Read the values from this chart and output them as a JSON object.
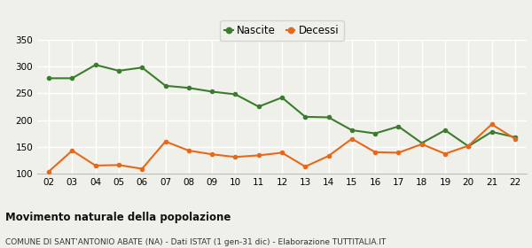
{
  "years": [
    2,
    3,
    4,
    5,
    6,
    7,
    8,
    9,
    10,
    11,
    12,
    13,
    14,
    15,
    16,
    17,
    18,
    19,
    20,
    21,
    22
  ],
  "nascite": [
    278,
    278,
    303,
    292,
    298,
    264,
    260,
    253,
    248,
    225,
    242,
    206,
    205,
    181,
    175,
    188,
    157,
    181,
    151,
    178,
    168
  ],
  "decessi": [
    104,
    143,
    115,
    116,
    109,
    160,
    143,
    136,
    131,
    134,
    139,
    113,
    133,
    165,
    140,
    139,
    155,
    137,
    152,
    192,
    165
  ],
  "nascite_color": "#3a7d2c",
  "decessi_color": "#e8681a",
  "marker_size": 4,
  "linewidth": 1.5,
  "ylim": [
    100,
    350
  ],
  "yticks": [
    100,
    150,
    200,
    250,
    300,
    350
  ],
  "title": "Movimento naturale della popolazione",
  "subtitle": "COMUNE DI SANT'ANTONIO ABATE (NA) - Dati ISTAT (1 gen-31 dic) - Elaborazione TUTTITALIA.IT",
  "legend_nascite": "Nascite",
  "legend_decessi": "Decessi",
  "bg_color": "#f0f0eb",
  "grid_color": "#ffffff"
}
